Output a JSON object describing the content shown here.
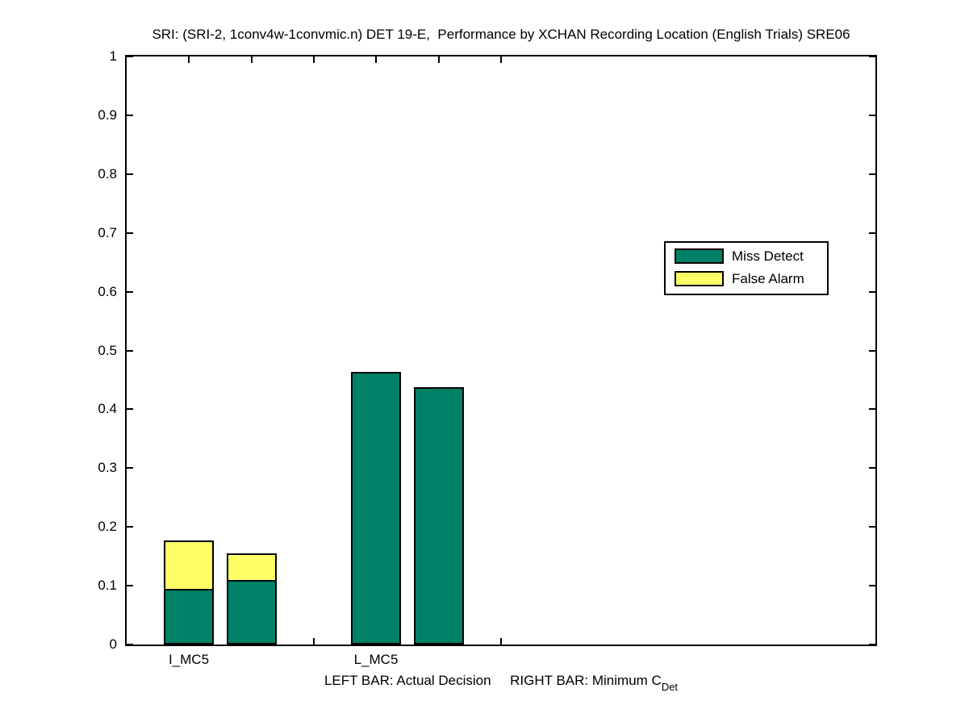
{
  "title": "SRI: (SRI-2, 1conv4w-1convmic.n) DET 19-E,  Performance by XCHAN Recording Location (English Trials) SRE06",
  "colors": {
    "miss_detect": "#008066",
    "false_alarm": "#FFFF66",
    "axis": "#000000",
    "background": "#FFFFFF"
  },
  "legend": {
    "items": [
      {
        "label": "Miss Detect",
        "color": "#008066"
      },
      {
        "label": "False Alarm",
        "color": "#FFFF66"
      }
    ]
  },
  "footer": {
    "text_main": "LEFT BAR: Actual Decision     RIGHT BAR: Minimum C",
    "text_sub": "Det"
  },
  "chart_data": {
    "type": "bar",
    "stacked": true,
    "title": "SRI: (SRI-2, 1conv4w-1convmic.n) DET 19-E,  Performance by XCHAN Recording Location (English Trials) SRE06",
    "xlabel": "LEFT BAR: Actual Decision     RIGHT BAR: Minimum C_Det",
    "ylabel": "",
    "ylim": [
      0,
      1
    ],
    "yticks": [
      0,
      0.1,
      0.2,
      0.3,
      0.4,
      0.5,
      0.6,
      0.7,
      0.8,
      0.9,
      1
    ],
    "yticklabels": [
      "0",
      "0.1",
      "0.2",
      "0.3",
      "0.4",
      "0.5",
      "0.6",
      "0.7",
      "0.8",
      "0.9",
      "1"
    ],
    "xlim": [
      0,
      12
    ],
    "xticks": [
      1,
      2,
      3,
      4,
      5,
      6
    ],
    "bar_width_units": 0.8,
    "grid": false,
    "legend_position": "upper-right-inside",
    "x_positions": [
      1,
      2,
      4,
      5
    ],
    "bar_labels": [
      "I_MC5 Actual Decision",
      "I_MC5 Minimum C_Det",
      "L_MC5 Actual Decision",
      "L_MC5 Minimum C_Det"
    ],
    "series": [
      {
        "name": "Miss Detect",
        "color": "#008066",
        "values": [
          0.095,
          0.11,
          0.463,
          0.438
        ]
      },
      {
        "name": "False Alarm",
        "color": "#FFFF66",
        "values": [
          0.082,
          0.045,
          0.0,
          0.0
        ]
      }
    ],
    "group_labels": [
      {
        "label": "I_MC5",
        "x": 1
      },
      {
        "label": "L_MC5",
        "x": 4
      }
    ]
  }
}
